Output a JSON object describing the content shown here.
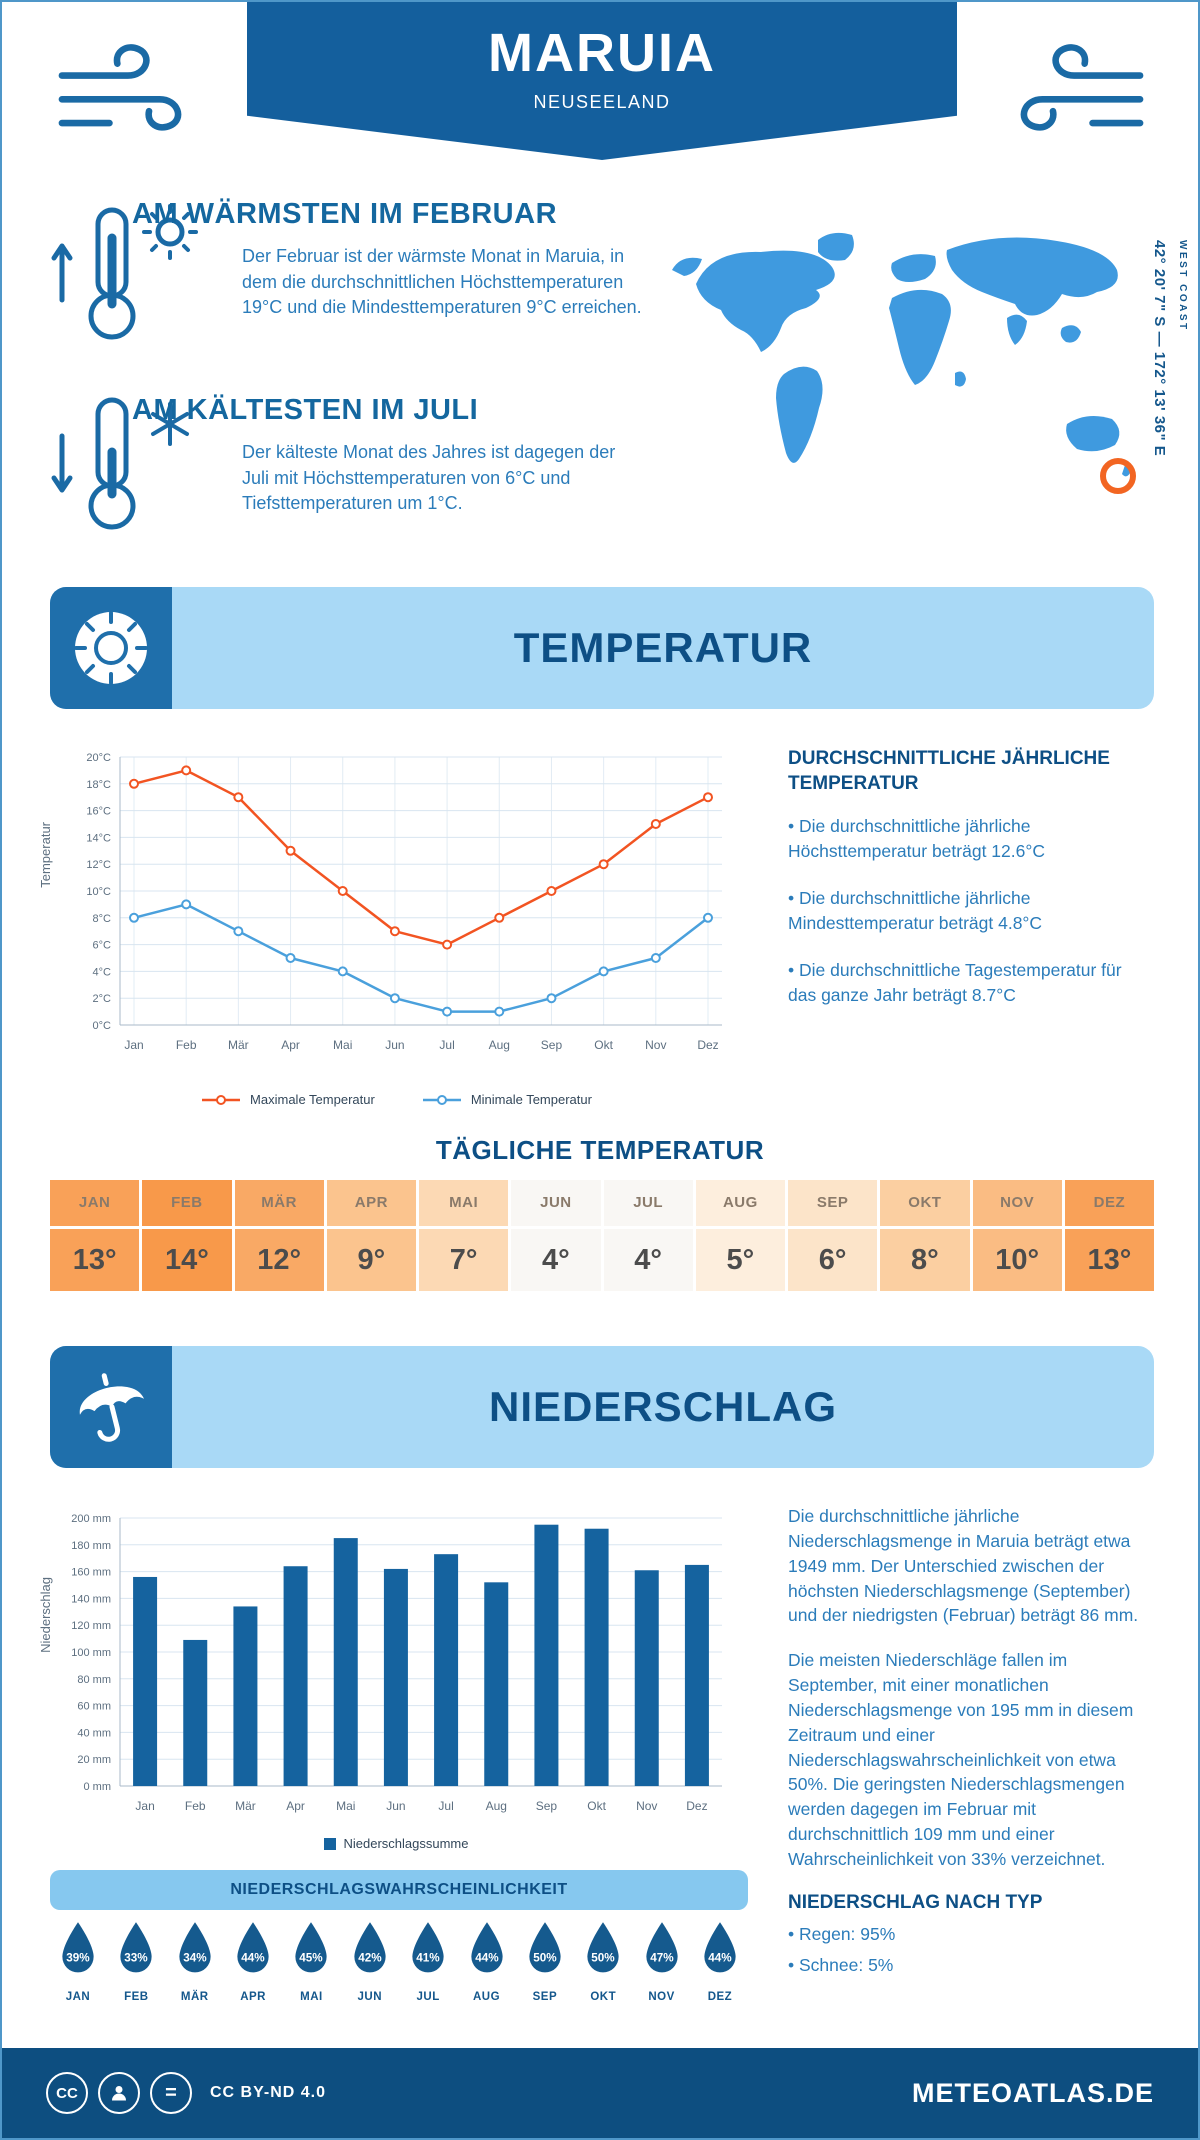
{
  "header": {
    "title": "MARUIA",
    "subtitle": "NEUSEELAND"
  },
  "highlights": {
    "warmest": {
      "title": "AM WÄRMSTEN IM FEBRUAR",
      "text": "Der Februar ist der wärmste Monat in Maruia, in dem die durchschnittlichen Höchsttemperaturen 19°C und die Mindesttemperaturen 9°C erreichen."
    },
    "coldest": {
      "title": "AM KÄLTESTEN IM JULI",
      "text": "Der kälteste Monat des Jahres ist dagegen der Juli mit Höchsttemperaturen von 6°C und Tiefsttemperaturen um 1°C."
    }
  },
  "map": {
    "coordinates": "42° 20' 7\" S — 172° 13' 36\" E",
    "region": "WEST COAST"
  },
  "temperature": {
    "section_title": "TEMPERATUR",
    "stats_heading": "DURCHSCHNITTLICHE JÄHRLICHE TEMPERATUR",
    "stats": [
      "• Die durchschnittliche jährliche Höchsttemperatur beträgt 12.6°C",
      "• Die durchschnittliche jährliche Mindesttemperatur beträgt 4.8°C",
      "• Die durchschnittliche Tagestemperatur für das ganze Jahr beträgt 8.7°C"
    ],
    "daily_title": "TÄGLICHE TEMPERATUR",
    "daily": {
      "months": [
        "JAN",
        "FEB",
        "MÄR",
        "APR",
        "MAI",
        "JUN",
        "JUL",
        "AUG",
        "SEP",
        "OKT",
        "NOV",
        "DEZ"
      ],
      "values": [
        "13°",
        "14°",
        "12°",
        "9°",
        "7°",
        "4°",
        "4°",
        "5°",
        "6°",
        "8°",
        "10°",
        "13°"
      ],
      "colors": [
        "#f9a158",
        "#f8994a",
        "#f9a965",
        "#fbc48e",
        "#fcd9b4",
        "#f9f7f4",
        "#f9f7f4",
        "#fdeedd",
        "#fce4c9",
        "#fbcfa1",
        "#fabc83",
        "#f9a158"
      ]
    }
  },
  "precipitation": {
    "section_title": "NIEDERSCHLAG",
    "text1": "Die durchschnittliche jährliche Niederschlagsmenge in Maruia beträgt etwa 1949 mm. Der Unterschied zwischen der höchsten Niederschlagsmenge (September) und der niedrigsten (Februar) beträgt 86 mm.",
    "text2": "Die meisten Niederschläge fallen im September, mit einer monatlichen Niederschlagsmenge von 195 mm in diesem Zeitraum und einer Niederschlagswahrscheinlichkeit von etwa 50%. Die geringsten Niederschlagsmengen werden dagegen im Februar mit durchschnittlich 109 mm und einer Wahrscheinlichkeit von 33% verzeichnet.",
    "type_heading": "NIEDERSCHLAG NACH TYP",
    "types": [
      "• Regen: 95%",
      "• Schnee: 5%"
    ],
    "probability_title": "NIEDERSCHLAGSWAHRSCHEINLICHKEIT",
    "probability": {
      "months": [
        "JAN",
        "FEB",
        "MÄR",
        "APR",
        "MAI",
        "JUN",
        "JUL",
        "AUG",
        "SEP",
        "OKT",
        "NOV",
        "DEZ"
      ],
      "values": [
        "39%",
        "33%",
        "34%",
        "44%",
        "45%",
        "42%",
        "41%",
        "44%",
        "50%",
        "50%",
        "47%",
        "44%"
      ]
    }
  },
  "footer": {
    "license": "CC BY-ND 4.0",
    "brand": "METEOATLAS.DE"
  },
  "chart_data": [
    {
      "type": "line",
      "title": "Temperatur",
      "categories": [
        "Jan",
        "Feb",
        "Mär",
        "Apr",
        "Mai",
        "Jun",
        "Jul",
        "Aug",
        "Sep",
        "Okt",
        "Nov",
        "Dez"
      ],
      "series": [
        {
          "name": "Maximale Temperatur",
          "color": "#f25422",
          "values": [
            18,
            19,
            17,
            13,
            10,
            7,
            6,
            8,
            10,
            12,
            15,
            17
          ]
        },
        {
          "name": "Minimale Temperatur",
          "color": "#4aa0dc",
          "values": [
            8,
            9,
            7,
            5,
            4,
            2,
            1,
            1,
            2,
            4,
            5,
            8
          ]
        }
      ],
      "xlabel": "",
      "ylabel": "Temperatur",
      "ylim": [
        0,
        20
      ],
      "ytick_step": 2,
      "ytick_suffix": "°C",
      "grid": true,
      "legend_position": "bottom"
    },
    {
      "type": "bar",
      "title": "Niederschlag",
      "categories": [
        "Jan",
        "Feb",
        "Mär",
        "Apr",
        "Mai",
        "Jun",
        "Jul",
        "Aug",
        "Sep",
        "Okt",
        "Nov",
        "Dez"
      ],
      "series": [
        {
          "name": "Niederschlagssumme",
          "color": "#15639f",
          "values": [
            156,
            109,
            134,
            164,
            185,
            162,
            173,
            152,
            195,
            192,
            161,
            165
          ]
        }
      ],
      "xlabel": "",
      "ylabel": "Niederschlag",
      "ylim": [
        0,
        200
      ],
      "ytick_step": 20,
      "ytick_suffix": " mm",
      "grid": true,
      "legend_position": "bottom"
    }
  ]
}
